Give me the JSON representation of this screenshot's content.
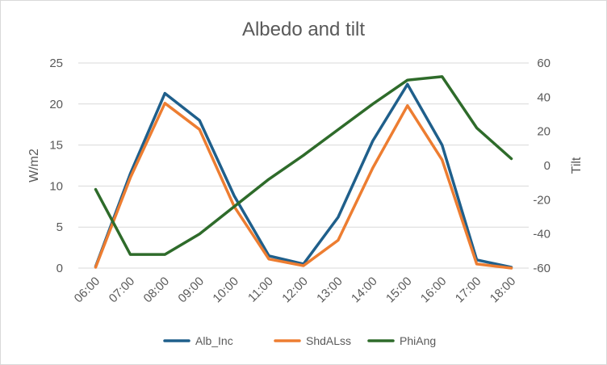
{
  "chart_data": {
    "type": "line",
    "title": "Albedo and tilt",
    "xlabel": "",
    "ylabel": "W/m2",
    "y2label": "Tilt",
    "ylim": [
      0,
      25
    ],
    "y2lim": [
      -60,
      60
    ],
    "yticks": [
      0,
      5,
      10,
      15,
      20,
      25
    ],
    "y2ticks": [
      -60,
      -40,
      -20,
      0,
      20,
      40,
      60
    ],
    "grid": true,
    "legend": "bottom",
    "categories": [
      "06:00",
      "07:00",
      "08:00",
      "09:00",
      "10:00",
      "11:00",
      "12:00",
      "13:00",
      "14:00",
      "15:00",
      "16:00",
      "17:00",
      "18:00"
    ],
    "series": [
      {
        "name": "Alb_Inc",
        "axis": "left",
        "color": "#1f5f8b",
        "values": [
          0.2,
          11.5,
          21.3,
          18.0,
          8.8,
          1.5,
          0.5,
          6.2,
          15.5,
          22.4,
          15.0,
          1.0,
          0.1
        ]
      },
      {
        "name": "ShdALss",
        "axis": "left",
        "color": "#ed7d31",
        "values": [
          0.1,
          11.0,
          20.1,
          16.9,
          7.5,
          1.1,
          0.3,
          3.4,
          12.2,
          19.8,
          13.2,
          0.5,
          0.0
        ]
      },
      {
        "name": "PhiAng",
        "axis": "right",
        "color": "#2e6b2a",
        "values": [
          -14,
          -52,
          -52,
          -40,
          -24,
          -8,
          6,
          21,
          36,
          50,
          52,
          22,
          4
        ]
      }
    ]
  }
}
